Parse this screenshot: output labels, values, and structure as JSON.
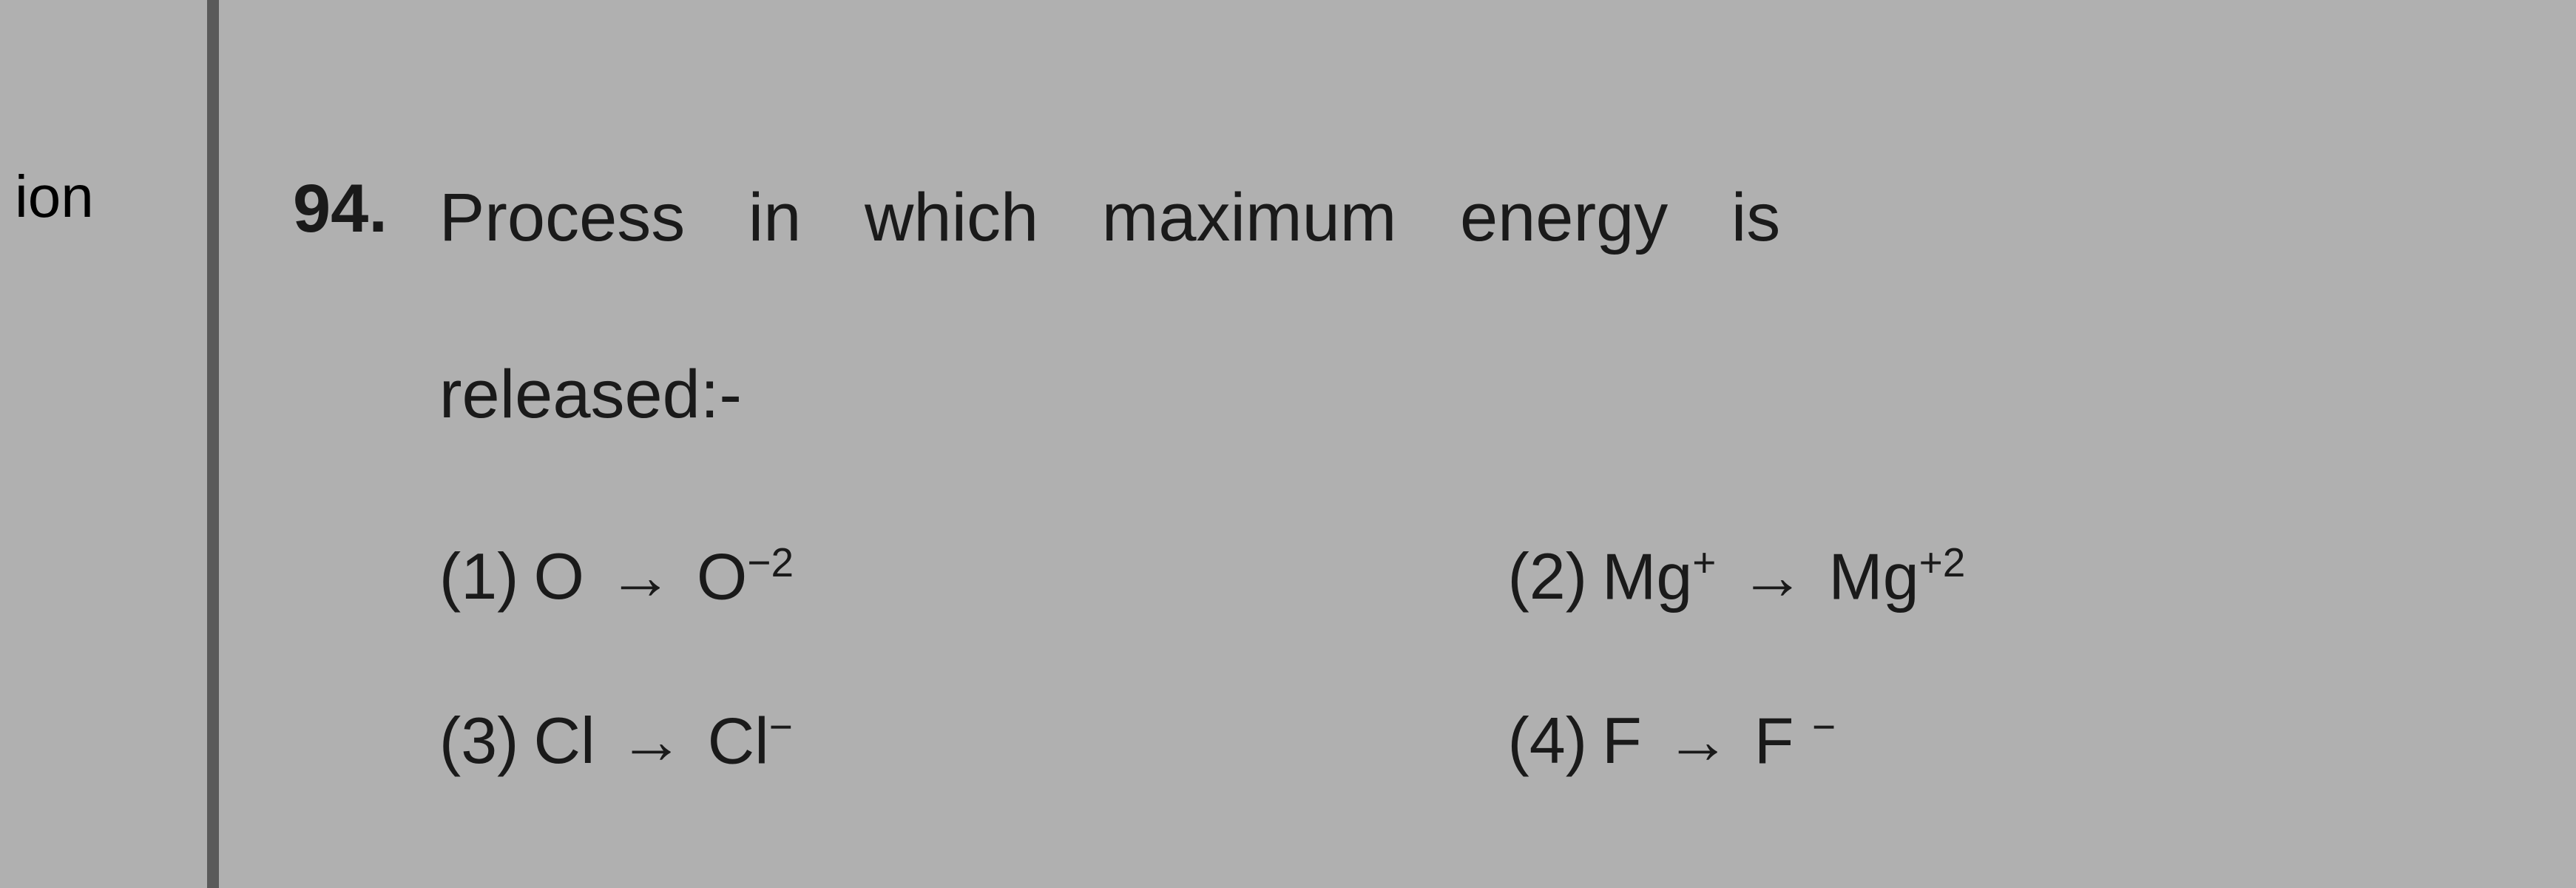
{
  "margin_label": "ion",
  "question": {
    "number": "94.",
    "text_line1": "Process in which maximum energy is",
    "text_line2": "released:-"
  },
  "options": [
    {
      "number": "(1)",
      "a": "O",
      "b": "O",
      "sup": "−2"
    },
    {
      "number": "(2)",
      "a": "Mg",
      "asup": "+",
      "b": "Mg",
      "sup": "+2"
    },
    {
      "number": "(3)",
      "a": "Cl",
      "b": "Cl",
      "sup": "−"
    },
    {
      "number": "(4)",
      "a": "F",
      "b": "F ",
      "sup": "−"
    }
  ],
  "colors": {
    "background": "#b0b0b0",
    "divider": "#5a5a5a",
    "text": "#1a1a1a"
  }
}
